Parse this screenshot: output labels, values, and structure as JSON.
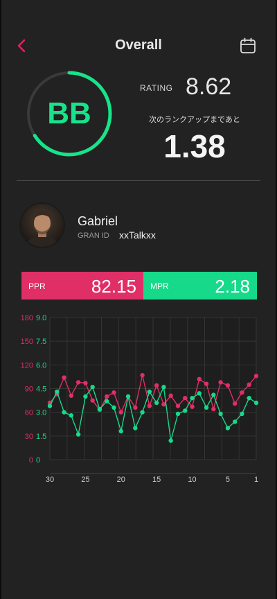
{
  "header": {
    "title": "Overall",
    "accent_color": "#e91e63",
    "back_icon": "chevron-left-icon",
    "calendar_icon": "calendar-icon"
  },
  "rank": {
    "grade": "BB",
    "progress": 0.66,
    "ring_color": "#17e48a"
  },
  "rating": {
    "label": "RATING",
    "value": "8.62",
    "next_rank_label": "次のランクアップまであと",
    "next_rank_value": "1.38"
  },
  "player": {
    "name": "Gabriel",
    "gran_id_label": "GRAN ID",
    "gran_id": "xxTalkxx"
  },
  "stats": {
    "ppr": {
      "label": "PPR",
      "value": "82.15",
      "color": "#e02f66"
    },
    "mpr": {
      "label": "MPR",
      "value": "2.18",
      "color": "#17d98a"
    }
  },
  "chart_data": {
    "type": "line",
    "x": [
      30,
      29,
      28,
      27,
      26,
      25,
      24,
      23,
      22,
      21,
      20,
      19,
      18,
      17,
      16,
      15,
      14,
      13,
      12,
      11,
      10,
      9,
      8,
      7,
      6,
      5,
      4,
      3,
      2,
      1
    ],
    "xticks": [
      "30",
      "25",
      "20",
      "15",
      "10",
      "5",
      "1"
    ],
    "xlim": [
      30,
      1
    ],
    "left_axis": {
      "ticks": [
        "180",
        "150",
        "120",
        "90",
        "60",
        "30",
        "0"
      ],
      "range": [
        0,
        180
      ],
      "color": "#e02f66"
    },
    "right_axis": {
      "ticks": [
        "9.0",
        "7.5",
        "6.0",
        "4.5",
        "3.0",
        "1.5",
        "0"
      ],
      "range": [
        0,
        9
      ],
      "color": "#17d98a"
    },
    "grid": true,
    "series": [
      {
        "name": "PPR",
        "axis": "left",
        "color": "#e02f66",
        "values": [
          72,
          83,
          104,
          81,
          98,
          97,
          75,
          63,
          80,
          85,
          60,
          80,
          66,
          107,
          68,
          94,
          70,
          81,
          68,
          78,
          67,
          102,
          96,
          64,
          98,
          94,
          71,
          85,
          95,
          106
        ]
      },
      {
        "name": "MPR",
        "axis": "right",
        "color": "#17d98a",
        "values": [
          3.4,
          4.3,
          3.0,
          2.8,
          1.6,
          4.0,
          4.6,
          3.2,
          3.7,
          3.3,
          1.8,
          4.0,
          2.0,
          3.0,
          4.3,
          3.6,
          4.6,
          1.2,
          2.9,
          3.1,
          3.9,
          4.2,
          3.3,
          4.1,
          2.9,
          2.0,
          2.4,
          2.9,
          3.9,
          3.6
        ]
      }
    ]
  }
}
